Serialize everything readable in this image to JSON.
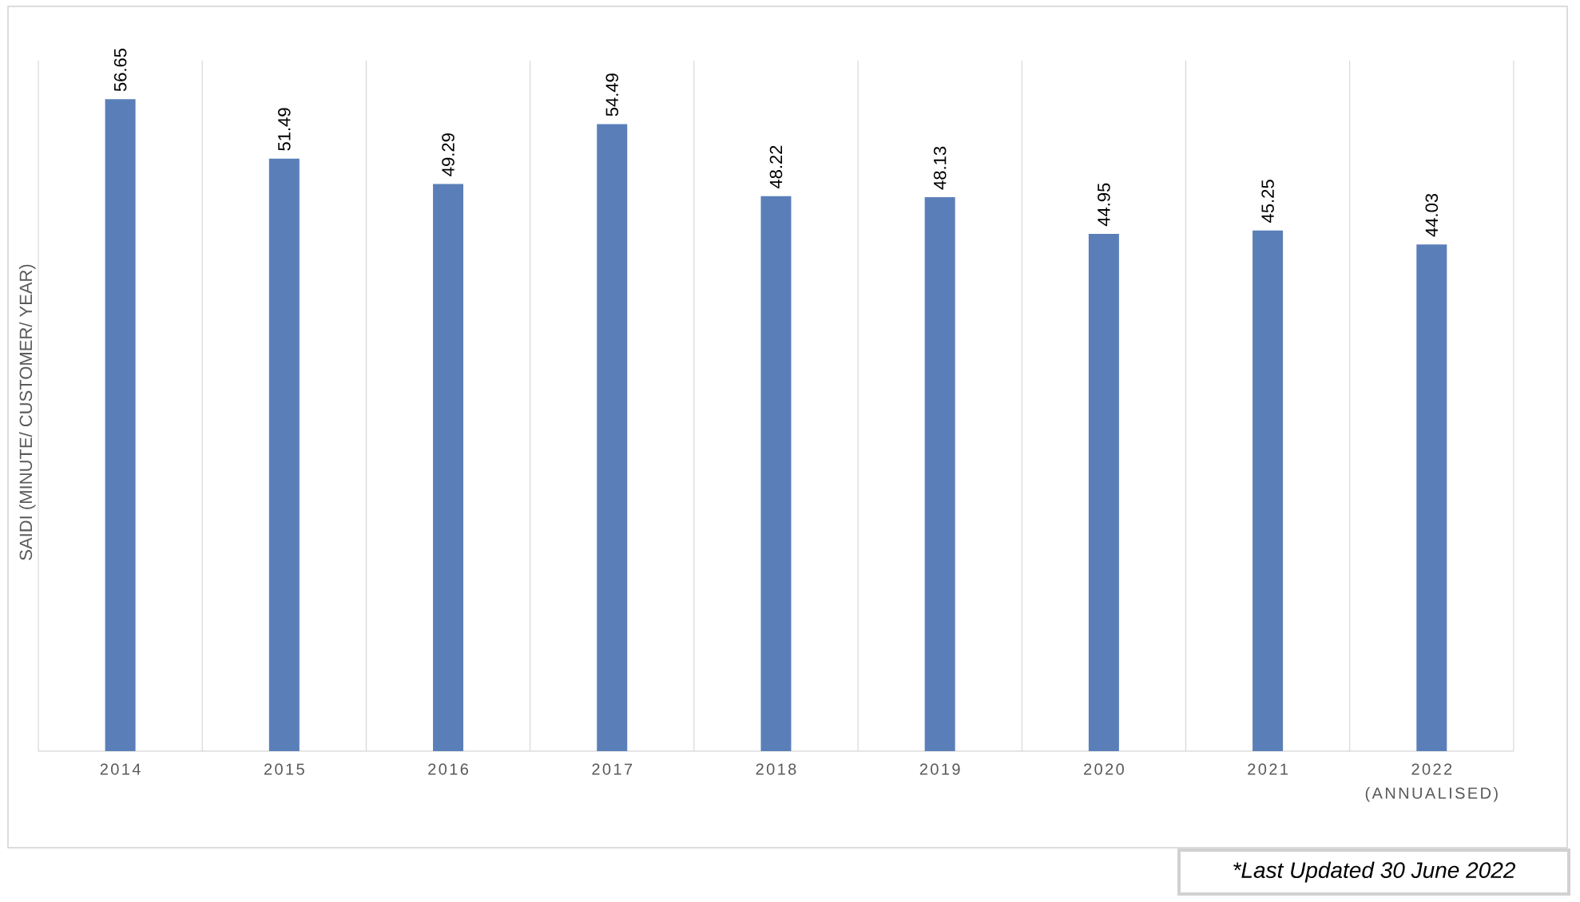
{
  "chart_data": {
    "type": "bar",
    "ylabel": "SAIDI (MINUTE/ CUSTOMER/ YEAR)",
    "categories": [
      "2014",
      "2015",
      "2016",
      "2017",
      "2018",
      "2019",
      "2020",
      "2021",
      "2022 (ANNUALISED)"
    ],
    "values": [
      56.65,
      51.49,
      49.29,
      54.49,
      48.22,
      48.13,
      44.95,
      45.25,
      44.03
    ],
    "color": "#5a7fb8",
    "ylim": [
      0,
      60
    ],
    "tick_labels": "x",
    "grid": "x",
    "data_labels": true,
    "annotations": [
      "*Last Updated 30 June 2022"
    ]
  }
}
